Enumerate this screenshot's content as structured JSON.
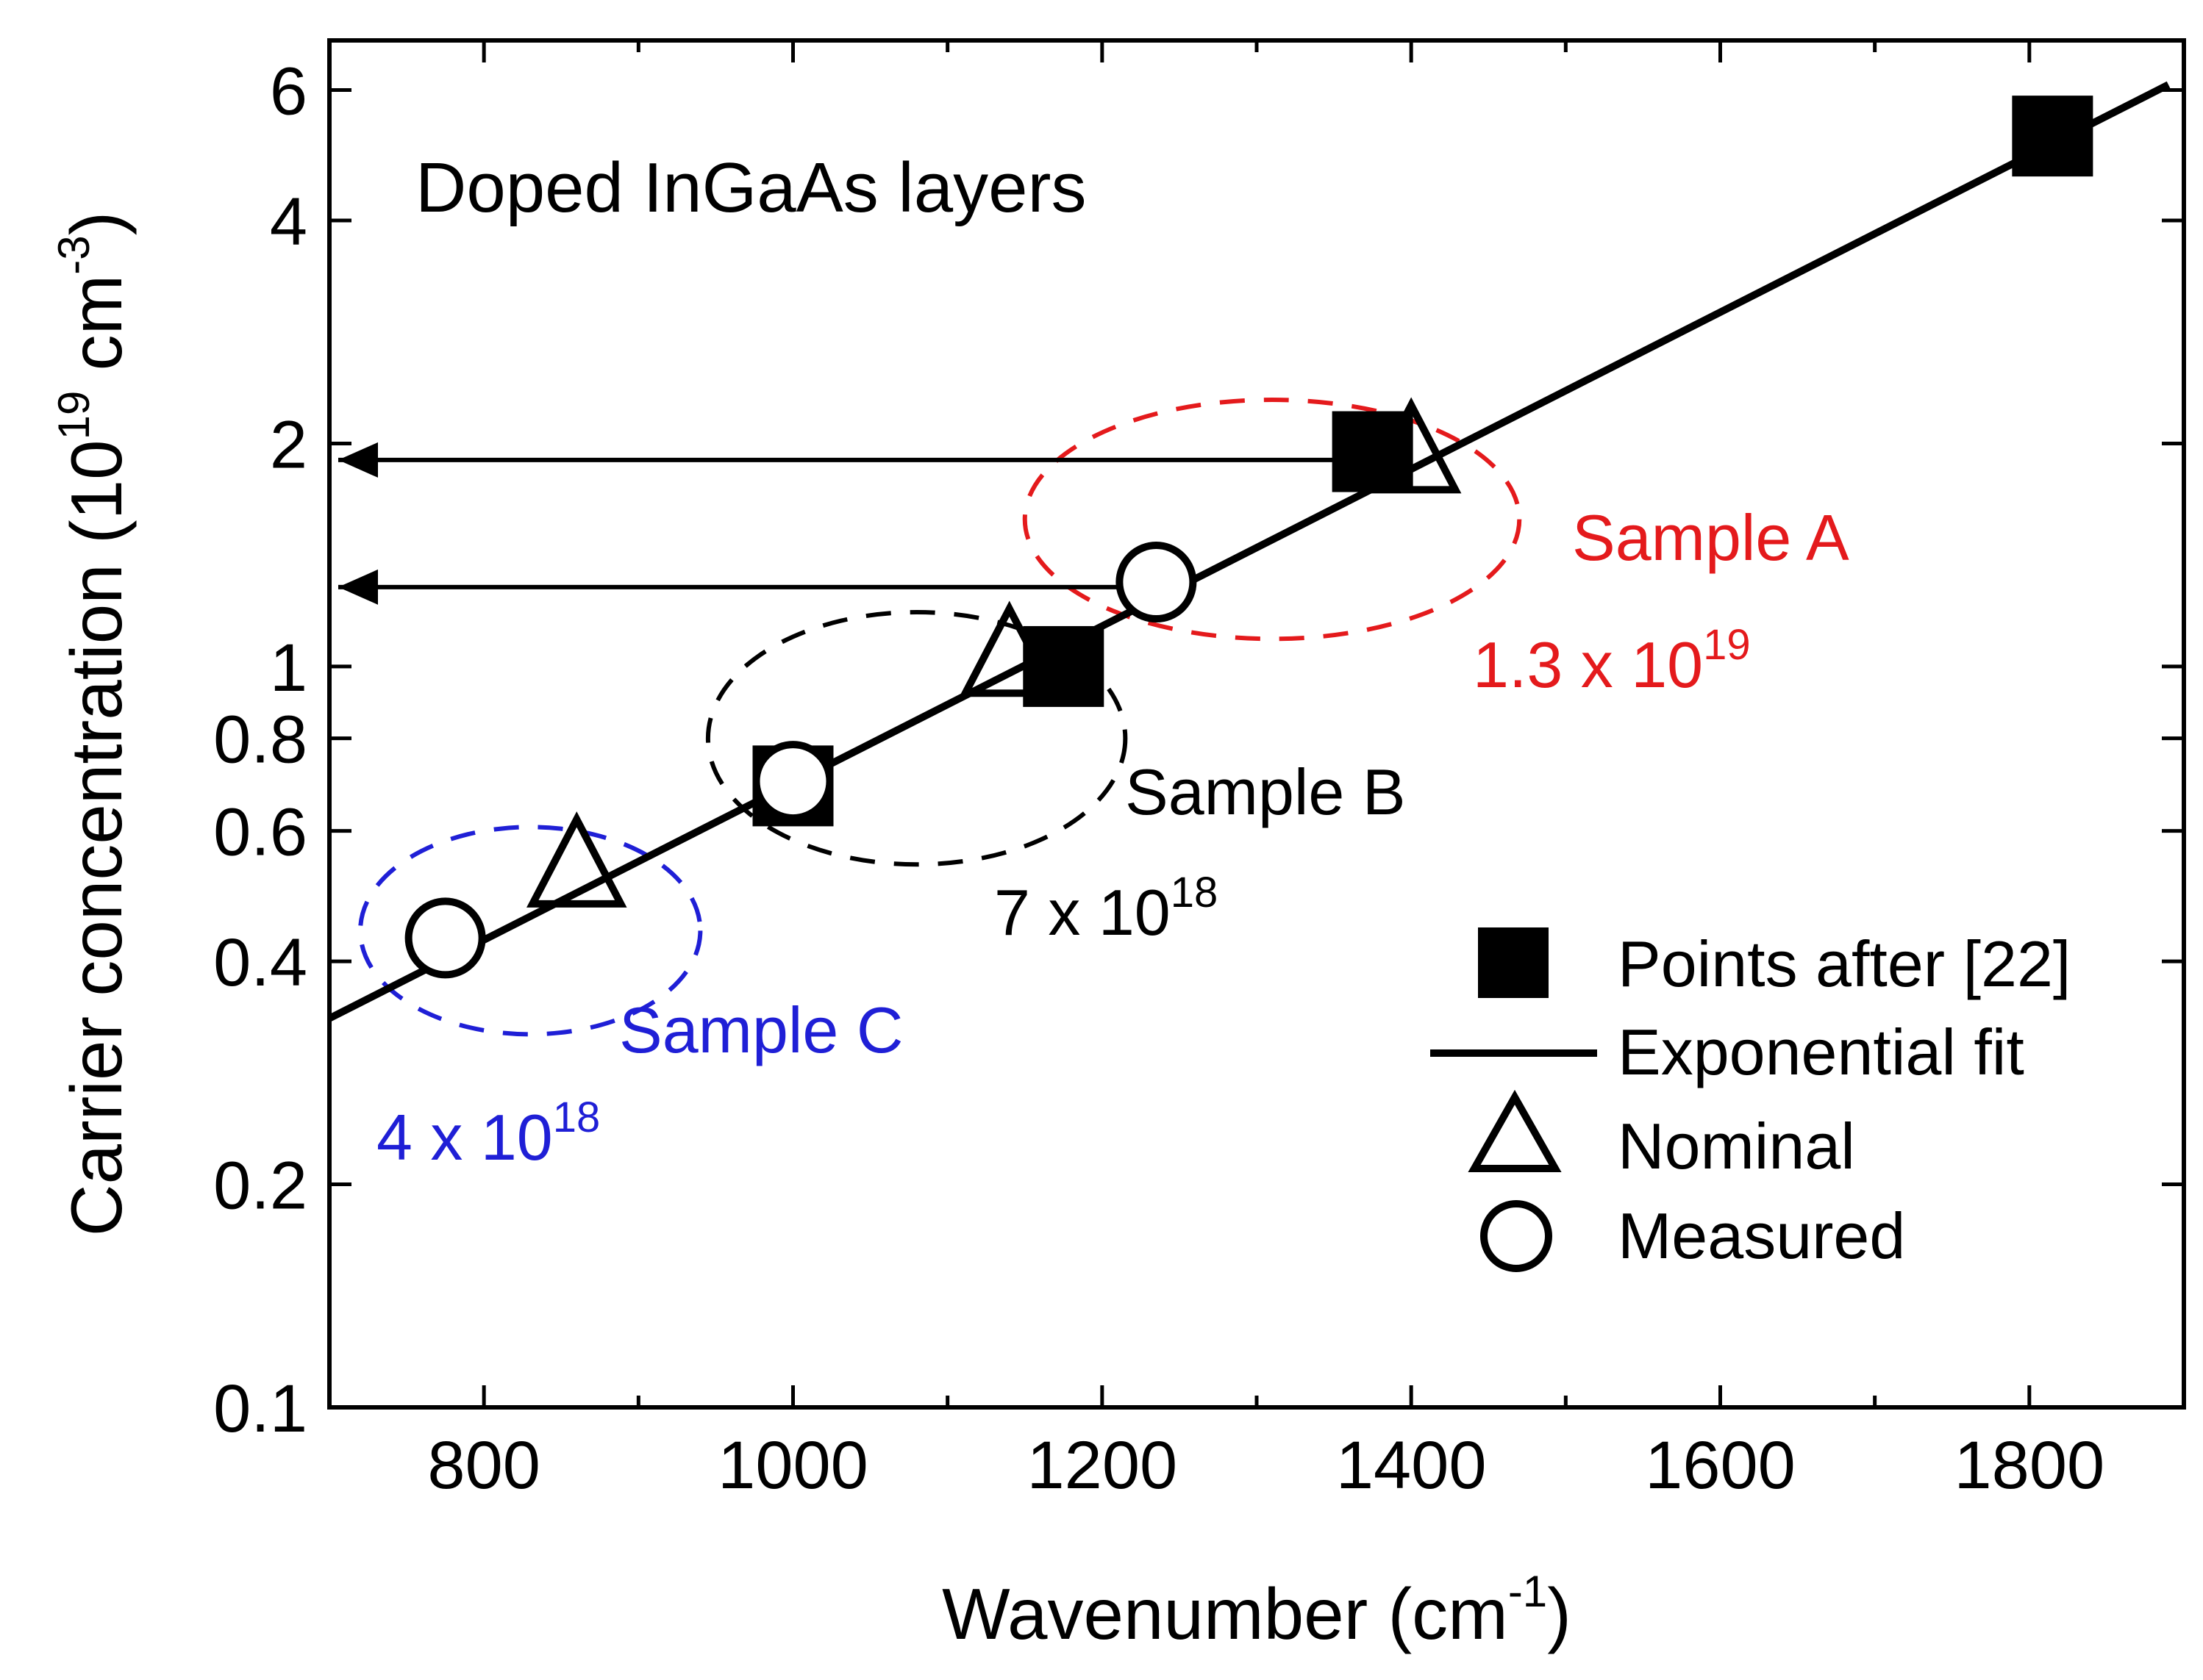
{
  "chart_data": {
    "type": "scatter",
    "title": "Doped InGaAs layers",
    "xlabel": "Wavenumber (cm",
    "xlabel_sup": "-1",
    "xlabel_end": ")",
    "ylabel": "Carrier concentration (10",
    "ylabel_sup1": "19",
    "ylabel_mid": " cm",
    "ylabel_sup2": "-3",
    "ylabel_end": ")",
    "xlim": [
      700,
      1900
    ],
    "ylim": [
      0.1,
      7
    ],
    "yscale": "log",
    "xticks": [
      800,
      1000,
      1200,
      1400,
      1600,
      1800
    ],
    "xtick_labels": [
      "800",
      "1000",
      "1200",
      "1400",
      "1600",
      "1800"
    ],
    "xminor": [
      700,
      900,
      1100,
      1300,
      1500,
      1700
    ],
    "yticks": [
      0.1,
      0.2,
      0.4,
      0.6,
      0.8,
      1,
      2,
      4,
      6
    ],
    "ytick_labels": [
      "0.1",
      "0.2",
      "0.4",
      "0.6",
      "0.8",
      "1",
      "2",
      "4",
      "6"
    ],
    "series": [
      {
        "name": "Points after [22]",
        "marker": "filled-square",
        "x": [
          1000,
          1175,
          1375,
          1815
        ],
        "y": [
          0.69,
          1.0,
          1.95,
          5.2
        ]
      },
      {
        "name": "Exponential fit",
        "marker": "line",
        "x": [
          700,
          1890
        ],
        "y": [
          0.335,
          6.1
        ]
      },
      {
        "name": "Nominal",
        "marker": "open-triangle",
        "x": [
          860,
          1140,
          1400
        ],
        "y": [
          0.53,
          1.02,
          1.92
        ]
      },
      {
        "name": "Measured",
        "marker": "open-circle",
        "x": [
          775,
          1000,
          1235
        ],
        "y": [
          0.43,
          0.7,
          1.3
        ]
      }
    ],
    "arrows": [
      {
        "from_x": 1375,
        "to_x": 700,
        "y": 1.9
      },
      {
        "from_x": 1235,
        "to_x": 700,
        "y": 1.28
      }
    ],
    "groups": [
      {
        "label": "Sample A",
        "value": "1.3 x 10",
        "exp": "19",
        "color": "#e41a1c",
        "cx": 1310,
        "cy": 1.58,
        "rx": 160,
        "ry_factor": 1.45
      },
      {
        "label": "Sample B",
        "value": "7 x 10",
        "exp": "18",
        "color": "#000000",
        "cx": 1080,
        "cy": 0.8,
        "rx": 135,
        "ry_factor": 1.48
      },
      {
        "label": "Sample C",
        "value": "4 x 10",
        "exp": "18",
        "color": "#1f1fd6",
        "cx": 830,
        "cy": 0.44,
        "rx": 110,
        "ry_factor": 1.38
      }
    ],
    "legend_position": "bottom-right"
  }
}
